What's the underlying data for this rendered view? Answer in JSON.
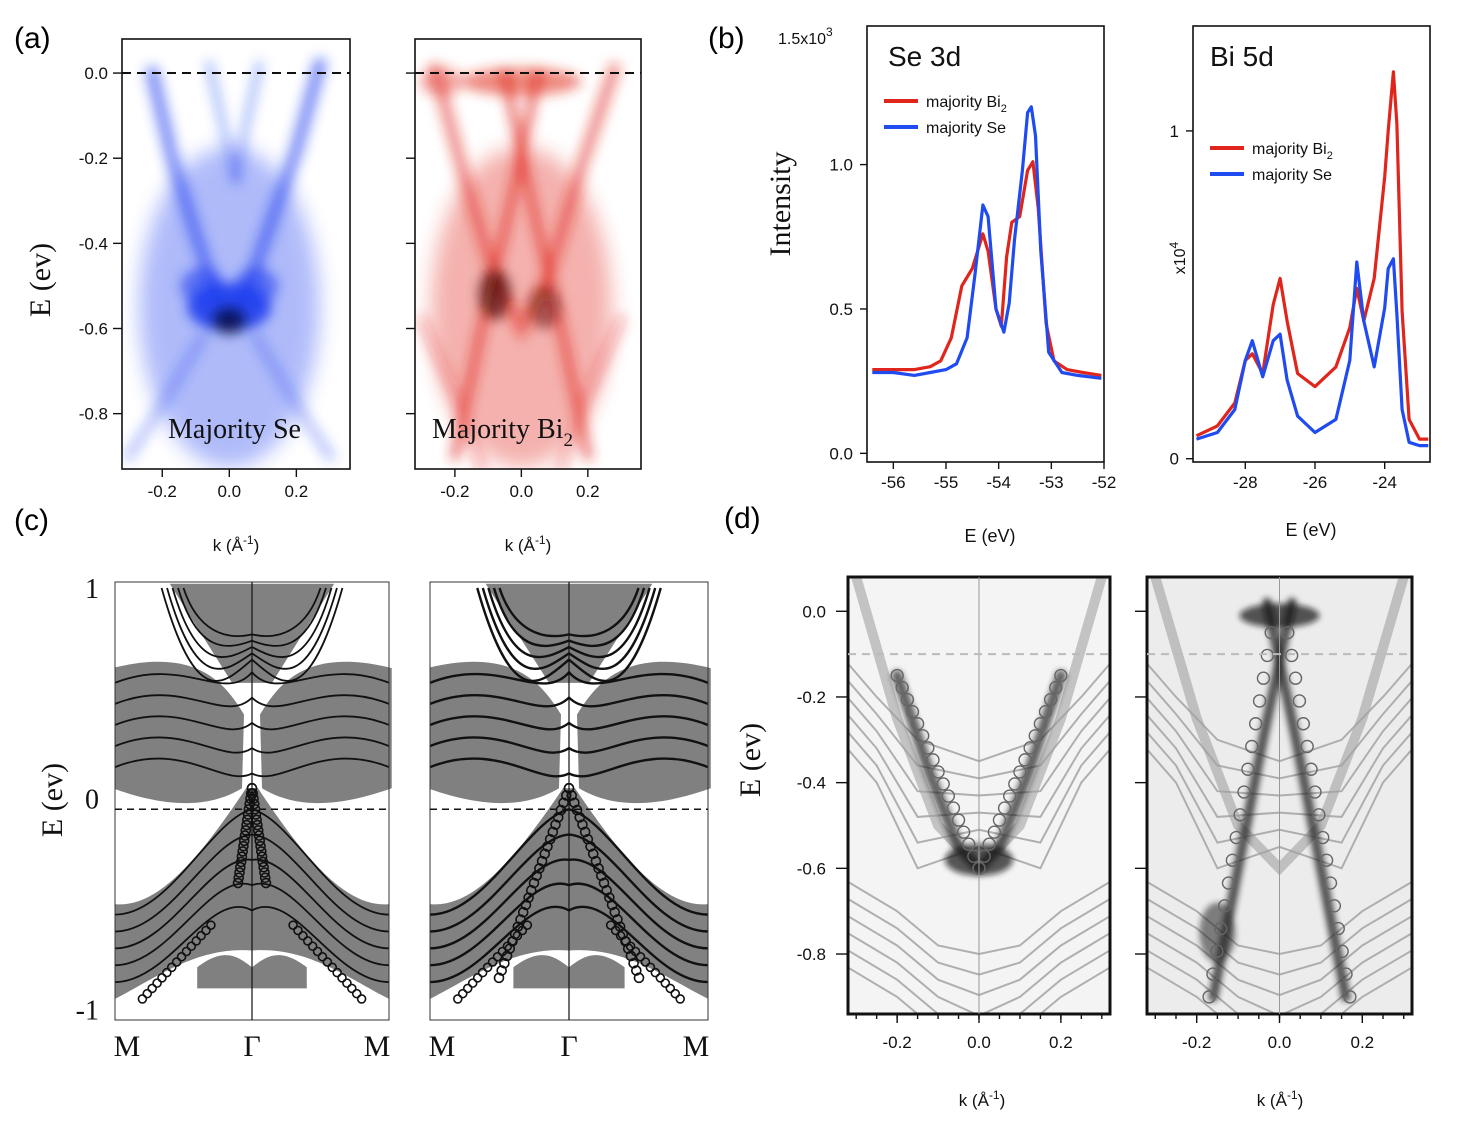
{
  "panel_labels": {
    "a": "(a)",
    "b": "(b)",
    "c": "(c)",
    "d": "(d)"
  },
  "colors": {
    "red": "#e0261c",
    "blue": "#1f4bf0",
    "arpes_blue": "#1e3ef0",
    "arpes_red": "#e02418",
    "gray": "#7a7a7a"
  },
  "chart_data": [
    {
      "id": "a-left",
      "type": "heatmap",
      "title": "",
      "annotation": "Majority Se",
      "ylabel": "E (ev)",
      "xlabel": "k (Å",
      "xlabel_sup": "-1",
      "xlabel_close": ")",
      "xlim": [
        -0.32,
        0.36
      ],
      "ylim": [
        -0.93,
        0.08
      ],
      "xticks": [
        -0.2,
        0.0,
        0.2
      ],
      "xtick_labels": [
        "-0.2",
        "0.0",
        "0.2"
      ],
      "yticks": [
        0.0,
        -0.2,
        -0.4,
        -0.6,
        -0.8
      ],
      "ytick_labels": [
        "0.0",
        "-0.2",
        "-0.4",
        "-0.6",
        "-0.8"
      ],
      "fermi_level": 0.0
    },
    {
      "id": "a-right",
      "type": "heatmap",
      "title": "",
      "annotation": "Majority Bi",
      "annotation_sub": "2",
      "xlabel": "k (Å",
      "xlabel_sup": "-1",
      "xlabel_close": ")",
      "xlim": [
        -0.32,
        0.36
      ],
      "ylim": [
        -0.93,
        0.08
      ],
      "xticks": [
        -0.2,
        0.0,
        0.2
      ],
      "xtick_labels": [
        "-0.2",
        "0.0",
        "0.2"
      ],
      "yticks": [
        0.0,
        -0.2,
        -0.4,
        -0.6,
        -0.8
      ],
      "fermi_level": 0.0
    },
    {
      "id": "b-left",
      "type": "line",
      "title": "Se 3d",
      "xlabel": "E (eV)",
      "ylabel": "Intensity",
      "yscale_label": "1.5x10",
      "yscale_sup": "3",
      "xlim": [
        -56.5,
        -52
      ],
      "ylim": [
        -0.03,
        1.48
      ],
      "xticks": [
        -56,
        -55,
        -54,
        -53,
        -52
      ],
      "xtick_labels": [
        "-56",
        "-55",
        "-54",
        "-53",
        "-52"
      ],
      "yticks": [
        0.0,
        0.5,
        1.0
      ],
      "ytick_labels": [
        "0.0",
        "0.5",
        "1.0"
      ],
      "legend": [
        "majority Bi",
        "majority Se"
      ],
      "legend_sub": [
        "2",
        ""
      ],
      "series": [
        {
          "name": "majority Bi2",
          "color": "red",
          "x": [
            -56.4,
            -56.0,
            -55.6,
            -55.3,
            -55.1,
            -54.9,
            -54.7,
            -54.5,
            -54.3,
            -54.2,
            -54.05,
            -53.95,
            -53.85,
            -53.75,
            -53.6,
            -53.45,
            -53.35,
            -53.25,
            -53.1,
            -52.95,
            -52.7,
            -52.4,
            -52.05
          ],
          "y": [
            0.29,
            0.29,
            0.29,
            0.3,
            0.32,
            0.4,
            0.58,
            0.64,
            0.76,
            0.7,
            0.5,
            0.44,
            0.68,
            0.8,
            0.82,
            0.98,
            1.01,
            0.85,
            0.45,
            0.32,
            0.29,
            0.28,
            0.27
          ]
        },
        {
          "name": "majority Se",
          "color": "blue",
          "x": [
            -56.4,
            -56.0,
            -55.6,
            -55.3,
            -55.0,
            -54.8,
            -54.6,
            -54.45,
            -54.3,
            -54.2,
            -54.05,
            -53.9,
            -53.8,
            -53.7,
            -53.55,
            -53.45,
            -53.38,
            -53.3,
            -53.2,
            -53.05,
            -52.8,
            -52.5,
            -52.05
          ],
          "y": [
            0.28,
            0.28,
            0.27,
            0.28,
            0.29,
            0.31,
            0.4,
            0.62,
            0.86,
            0.82,
            0.5,
            0.42,
            0.52,
            0.74,
            0.98,
            1.18,
            1.2,
            1.1,
            0.7,
            0.35,
            0.28,
            0.27,
            0.26
          ]
        }
      ]
    },
    {
      "id": "b-right",
      "type": "line",
      "title": "Bi 5d",
      "xlabel": "E (eV)",
      "ylabel": "x10",
      "ylabel_sup": "4",
      "xlim": [
        -29.5,
        -22.7
      ],
      "ylim": [
        -0.01,
        1.32
      ],
      "xticks": [
        -28,
        -26,
        -24
      ],
      "xtick_labels": [
        "-28",
        "-26",
        "-24"
      ],
      "yticks": [
        0,
        1
      ],
      "ytick_labels": [
        "0",
        "1"
      ],
      "legend": [
        "majority Bi",
        "majority Se"
      ],
      "legend_sub": [
        "2",
        ""
      ],
      "series": [
        {
          "name": "majority Bi2",
          "color": "red",
          "x": [
            -29.4,
            -28.8,
            -28.3,
            -28.0,
            -27.8,
            -27.5,
            -27.2,
            -27.0,
            -26.8,
            -26.5,
            -26.0,
            -25.4,
            -25.0,
            -24.8,
            -24.6,
            -24.3,
            -24.0,
            -23.9,
            -23.75,
            -23.65,
            -23.5,
            -23.3,
            -23.0,
            -22.75
          ],
          "y": [
            0.07,
            0.1,
            0.17,
            0.3,
            0.32,
            0.26,
            0.47,
            0.55,
            0.42,
            0.26,
            0.22,
            0.28,
            0.4,
            0.52,
            0.42,
            0.55,
            0.86,
            1.0,
            1.18,
            1.02,
            0.45,
            0.12,
            0.06,
            0.06
          ]
        },
        {
          "name": "majority Se",
          "color": "blue",
          "x": [
            -29.4,
            -28.8,
            -28.3,
            -28.0,
            -27.8,
            -27.5,
            -27.2,
            -27.0,
            -26.8,
            -26.5,
            -26.0,
            -25.4,
            -25.0,
            -24.8,
            -24.6,
            -24.3,
            -24.0,
            -23.9,
            -23.75,
            -23.65,
            -23.5,
            -23.3,
            -23.0,
            -22.75
          ],
          "y": [
            0.06,
            0.08,
            0.15,
            0.3,
            0.36,
            0.25,
            0.36,
            0.38,
            0.24,
            0.13,
            0.08,
            0.12,
            0.3,
            0.6,
            0.42,
            0.28,
            0.46,
            0.58,
            0.61,
            0.44,
            0.15,
            0.05,
            0.04,
            0.04
          ]
        }
      ]
    },
    {
      "id": "c-left",
      "type": "line",
      "title": "",
      "subtype": "band-structure",
      "ylabel": "E (ev)",
      "ylim": [
        -1.05,
        1.0
      ],
      "yticks": [
        1,
        0,
        -1
      ],
      "ytick_labels": [
        "1",
        "0",
        "-1"
      ],
      "kpoints": [
        "M",
        "Γ",
        "M"
      ]
    },
    {
      "id": "c-right",
      "type": "line",
      "title": "",
      "subtype": "band-structure",
      "ylim": [
        -1.05,
        1.0
      ],
      "kpoints": [
        "M",
        "Γ",
        "M"
      ]
    },
    {
      "id": "d-left",
      "type": "heatmap",
      "title": "",
      "subtype": "grayscale-overlay",
      "ylabel": "E (ev)",
      "xlabel": "k (Å",
      "xlabel_sup": "-1",
      "xlabel_close": ")",
      "xlim": [
        -0.32,
        0.32
      ],
      "ylim": [
        -0.94,
        0.08
      ],
      "xticks": [
        -0.2,
        0.0,
        0.2
      ],
      "xtick_labels": [
        "-0.2",
        "0.0",
        "0.2"
      ],
      "yticks": [
        0.0,
        -0.2,
        -0.4,
        -0.6,
        -0.8
      ],
      "ytick_labels": [
        "0.0",
        "-0.2",
        "-0.4",
        "-0.6",
        "-0.8"
      ]
    },
    {
      "id": "d-right",
      "type": "heatmap",
      "title": "",
      "subtype": "grayscale-overlay",
      "xlabel": "k (Å",
      "xlabel_sup": "-1",
      "xlabel_close": ")",
      "xlim": [
        -0.32,
        0.32
      ],
      "ylim": [
        -0.94,
        0.08
      ],
      "xticks": [
        -0.2,
        0.0,
        0.2
      ],
      "xtick_labels": [
        "-0.2",
        "0.0",
        "0.2"
      ],
      "yticks": [
        0.0,
        -0.2,
        -0.4,
        -0.6,
        -0.8
      ]
    }
  ]
}
